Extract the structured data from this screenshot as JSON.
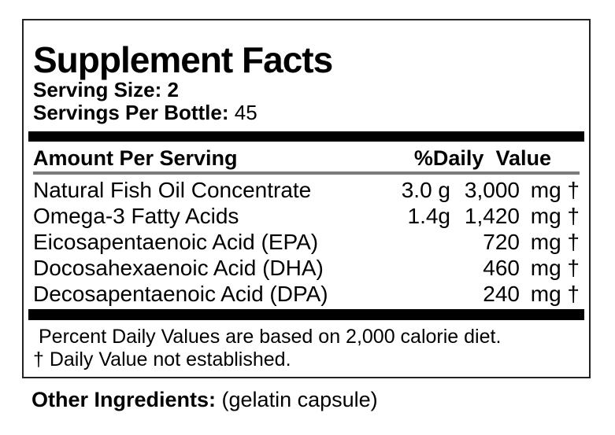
{
  "label": {
    "title": "Supplement Facts",
    "serving_size_label": "Serving Size:",
    "serving_size_value": "2",
    "servings_per_bottle_label": "Servings Per Bottle:",
    "servings_per_bottle_value": "45",
    "header": {
      "amount": "Amount Per Serving",
      "daily_value": "%Daily  Value"
    },
    "rows": [
      {
        "name": "Natural Fish Oil Concentrate",
        "grams": "3.0 g",
        "mg": "3,000",
        "unit": "mg †"
      },
      {
        "name": "Omega-3 Fatty Acids",
        "grams": "1.4g",
        "mg": "1,420",
        "unit": "mg †"
      },
      {
        "name": "Eicosapentaenoic Acid (EPA)",
        "grams": "",
        "mg": "720",
        "unit": "mg †"
      },
      {
        "name": "Docosahexaenoic Acid (DHA)",
        "grams": "",
        "mg": "460",
        "unit": "mg †"
      },
      {
        "name": "Decosapentaenoic Acid (DPA)",
        "grams": "",
        "mg": "240",
        "unit": "mg †"
      }
    ],
    "footnotes": [
      "Percent Daily Values are based on 2,000 calorie diet.",
      "† Daily Value not established."
    ],
    "other_ingredients_label": "Other Ingredients:",
    "other_ingredients_value": " (gelatin capsule)"
  },
  "colors": {
    "text": "#000000",
    "bar": "#000000",
    "rule_gray": "#7a7a7a",
    "border": "#222222",
    "background": "#ffffff"
  }
}
